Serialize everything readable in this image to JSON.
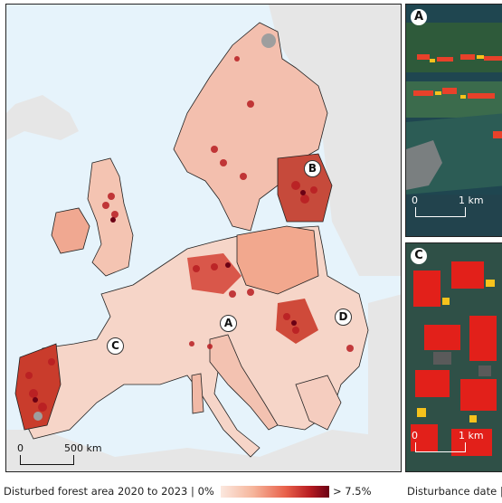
{
  "map": {
    "labels": {
      "A": "A",
      "B": "B",
      "C": "C",
      "D": "D"
    },
    "scale": {
      "zero": "0",
      "distance": "500 km"
    },
    "colors": {
      "water": "#e6f3fb",
      "land": "#e6e6e6",
      "no_data": "#bdbdbd",
      "class_colors": [
        "#fbe8df",
        "#f6b59b",
        "#ec7f68",
        "#d9412f",
        "#b81d22",
        "#6b0014"
      ]
    }
  },
  "insets": [
    {
      "letter": "A",
      "scale_zero": "0",
      "scale_distance": "1 km"
    },
    {
      "letter": "C",
      "scale_zero": "0",
      "scale_distance": "1 km"
    }
  ],
  "legend": {
    "title": "Disturbed forest area 2020 to 2023 | 0%",
    "max_label": "> 7.5%",
    "secondary_title": "Disturbance date |"
  }
}
